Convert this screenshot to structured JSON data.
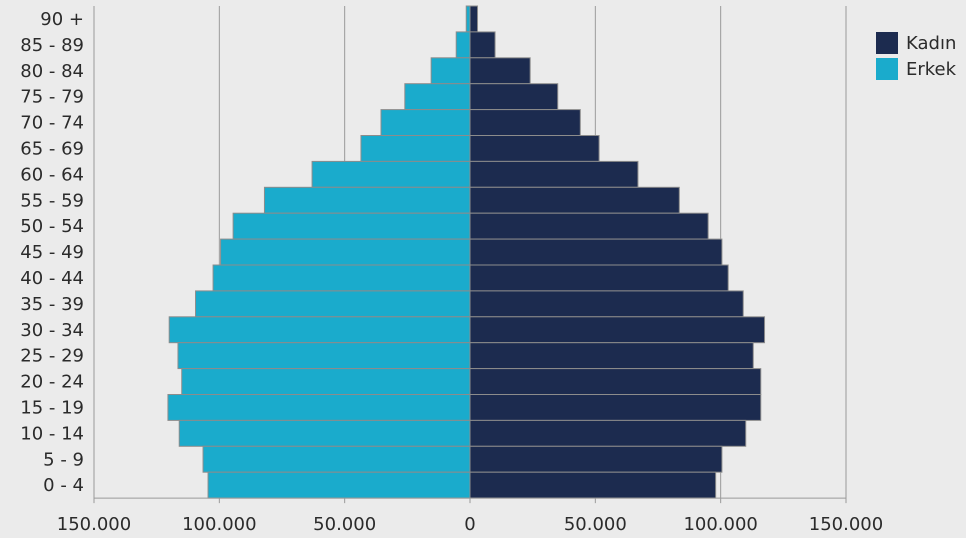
{
  "chart_data": {
    "type": "bar",
    "orientation": "horizontal",
    "categories": [
      "90 +",
      "85 - 89",
      "80 - 84",
      "75 - 79",
      "70 - 74",
      "65 - 69",
      "60 - 64",
      "55 - 59",
      "50 - 54",
      "45 - 49",
      "40 - 44",
      "35 - 39",
      "30 - 34",
      "25 - 29",
      "20 - 24",
      "15 - 19",
      "10 - 14",
      "5 - 9",
      "0 - 4"
    ],
    "series": [
      {
        "name": "Kadın",
        "color": "#1c2b4f",
        "side": "right",
        "values": [
          3000,
          10000,
          24000,
          35000,
          44000,
          51500,
          67000,
          83500,
          95000,
          100500,
          103000,
          109000,
          117500,
          113000,
          116000,
          116000,
          110000,
          100500,
          98000
        ]
      },
      {
        "name": "Erkek",
        "color": "#1aabcc",
        "side": "left",
        "values": [
          1500,
          5500,
          15500,
          26000,
          35500,
          43500,
          63000,
          82000,
          94500,
          99500,
          102500,
          109500,
          120000,
          116500,
          115000,
          120500,
          116000,
          106500,
          104500
        ]
      }
    ],
    "xlim": [
      -150000,
      150000
    ],
    "xticks": [
      {
        "value": -150000,
        "label": "150.000"
      },
      {
        "value": -100000,
        "label": "100.000"
      },
      {
        "value": -50000,
        "label": "50.000"
      },
      {
        "value": 0,
        "label": "0"
      },
      {
        "value": 50000,
        "label": "50.000"
      },
      {
        "value": 100000,
        "label": "100.000"
      },
      {
        "value": 150000,
        "label": "150.000"
      }
    ],
    "grid": true,
    "legend_position": "top-right",
    "title": "",
    "xlabel": "",
    "ylabel": ""
  }
}
